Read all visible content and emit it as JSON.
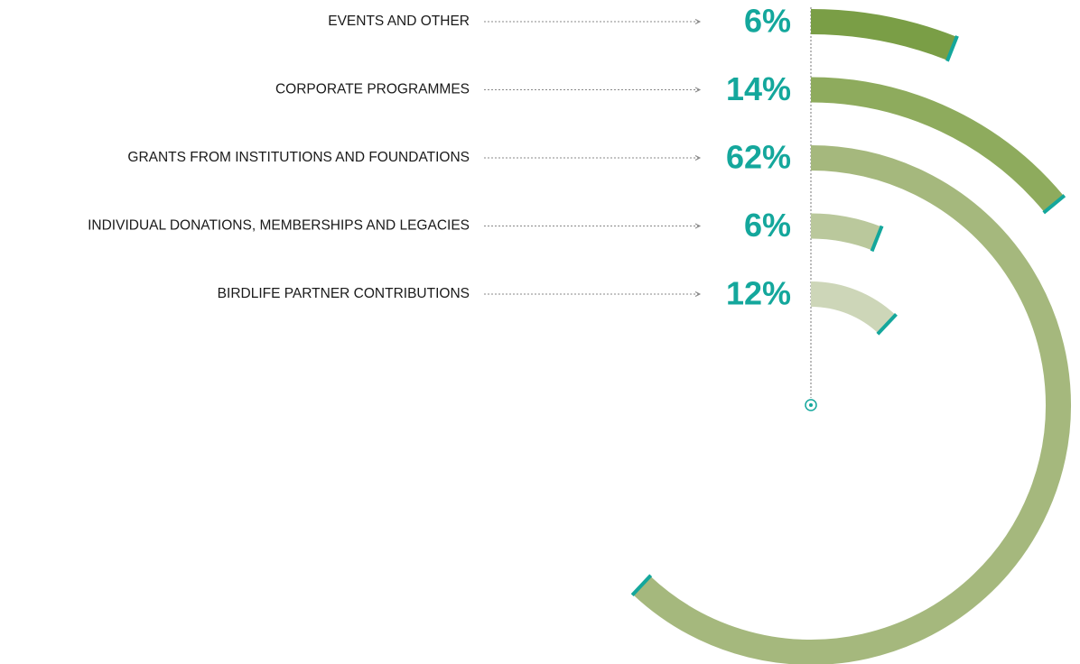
{
  "chart_data": {
    "type": "radial_bar",
    "categories": [
      "EVENTS AND OTHER",
      "CORPORATE PROGRAMMES",
      "GRANTS FROM INSTITUTIONS AND FOUNDATIONS",
      "INDIVIDUAL DONATIONS, MEMBERSHIPS AND LEGACIES",
      "BIRDLIFE PARTNER CONTRIBUTIONS"
    ],
    "values": [
      6,
      14,
      62,
      6,
      12
    ],
    "value_labels": [
      "6%",
      "14%",
      "62%",
      "6%",
      "12%"
    ],
    "colors": [
      "#7a9e46",
      "#8eab5d",
      "#a5b87d",
      "#bac89c",
      "#cdd6b8"
    ],
    "ylim": [
      0,
      100
    ]
  }
}
